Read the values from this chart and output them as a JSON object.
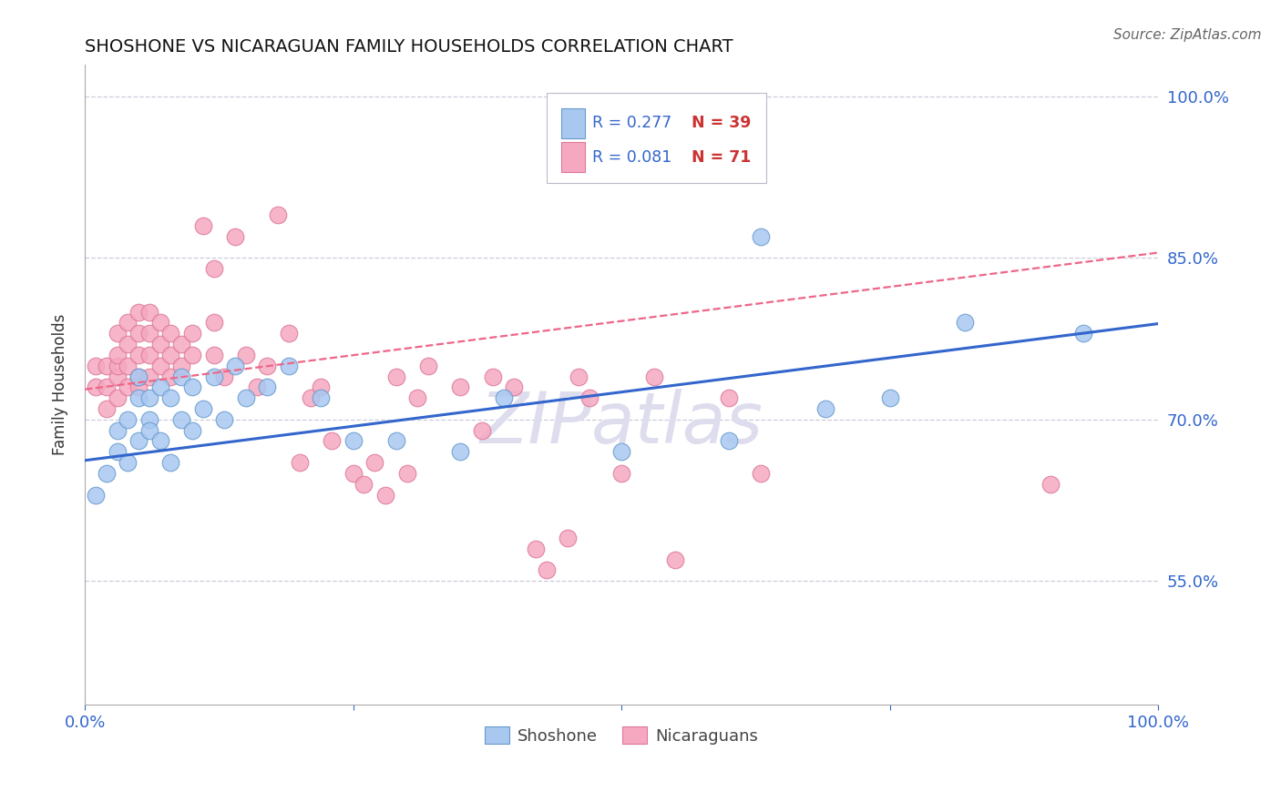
{
  "title": "SHOSHONE VS NICARAGUAN FAMILY HOUSEHOLDS CORRELATION CHART",
  "source_text": "Source: ZipAtlas.com",
  "ylabel": "Family Households",
  "xlim": [
    0.0,
    1.0
  ],
  "ylim": [
    0.435,
    1.03
  ],
  "yticks": [
    0.55,
    0.7,
    0.85,
    1.0
  ],
  "ytick_labels": [
    "55.0%",
    "70.0%",
    "85.0%",
    "100.0%"
  ],
  "shoshone_color": "#A8C8F0",
  "shoshone_edge": "#6699CC",
  "nicaraguan_color": "#F5A8C0",
  "nicaraguan_edge": "#DD7799",
  "trend_blue": "#3366CC",
  "trend_pink": "#EE6688",
  "watermark_color": "#DDDDEE",
  "R_shoshone": 0.277,
  "N_shoshone": 39,
  "R_nicaraguan": 0.081,
  "N_nicaraguan": 71,
  "shoshone_x": [
    0.01,
    0.02,
    0.03,
    0.03,
    0.04,
    0.04,
    0.05,
    0.05,
    0.05,
    0.06,
    0.06,
    0.06,
    0.07,
    0.07,
    0.08,
    0.08,
    0.09,
    0.09,
    0.1,
    0.1,
    0.11,
    0.12,
    0.13,
    0.14,
    0.15,
    0.17,
    0.19,
    0.22,
    0.25,
    0.29,
    0.35,
    0.39,
    0.5,
    0.6,
    0.63,
    0.69,
    0.75,
    0.82,
    0.93
  ],
  "shoshone_y": [
    0.63,
    0.65,
    0.67,
    0.69,
    0.7,
    0.66,
    0.72,
    0.68,
    0.74,
    0.7,
    0.72,
    0.69,
    0.73,
    0.68,
    0.72,
    0.66,
    0.74,
    0.7,
    0.73,
    0.69,
    0.71,
    0.74,
    0.7,
    0.75,
    0.72,
    0.73,
    0.75,
    0.72,
    0.68,
    0.68,
    0.67,
    0.72,
    0.67,
    0.68,
    0.87,
    0.71,
    0.72,
    0.79,
    0.78
  ],
  "nicaraguan_x": [
    0.01,
    0.01,
    0.02,
    0.02,
    0.02,
    0.03,
    0.03,
    0.03,
    0.03,
    0.03,
    0.04,
    0.04,
    0.04,
    0.04,
    0.05,
    0.05,
    0.05,
    0.05,
    0.05,
    0.06,
    0.06,
    0.06,
    0.06,
    0.07,
    0.07,
    0.07,
    0.08,
    0.08,
    0.08,
    0.09,
    0.09,
    0.1,
    0.1,
    0.11,
    0.12,
    0.12,
    0.12,
    0.13,
    0.14,
    0.15,
    0.16,
    0.17,
    0.18,
    0.19,
    0.2,
    0.21,
    0.22,
    0.23,
    0.25,
    0.26,
    0.27,
    0.28,
    0.29,
    0.3,
    0.31,
    0.32,
    0.35,
    0.37,
    0.38,
    0.4,
    0.42,
    0.43,
    0.45,
    0.46,
    0.47,
    0.5,
    0.53,
    0.55,
    0.6,
    0.63,
    0.9
  ],
  "nicaraguan_y": [
    0.73,
    0.75,
    0.71,
    0.73,
    0.75,
    0.72,
    0.74,
    0.75,
    0.76,
    0.78,
    0.73,
    0.75,
    0.77,
    0.79,
    0.73,
    0.74,
    0.76,
    0.78,
    0.8,
    0.74,
    0.76,
    0.78,
    0.8,
    0.75,
    0.77,
    0.79,
    0.74,
    0.76,
    0.78,
    0.75,
    0.77,
    0.76,
    0.78,
    0.88,
    0.84,
    0.76,
    0.79,
    0.74,
    0.87,
    0.76,
    0.73,
    0.75,
    0.89,
    0.78,
    0.66,
    0.72,
    0.73,
    0.68,
    0.65,
    0.64,
    0.66,
    0.63,
    0.74,
    0.65,
    0.72,
    0.75,
    0.73,
    0.69,
    0.74,
    0.73,
    0.58,
    0.56,
    0.59,
    0.74,
    0.72,
    0.65,
    0.74,
    0.57,
    0.72,
    0.65,
    0.64
  ],
  "shoshone_trend": [
    0.662,
    0.789
  ],
  "nicaraguan_trend": [
    0.728,
    0.855
  ]
}
